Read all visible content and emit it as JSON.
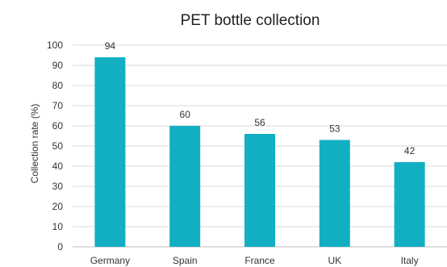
{
  "chart_data": {
    "type": "bar",
    "title": "PET bottle collection",
    "xlabel": "",
    "ylabel": "Collection rate (%)",
    "categories": [
      "Germany",
      "Spain",
      "France",
      "UK",
      "Italy"
    ],
    "values": [
      94,
      60,
      56,
      53,
      42
    ],
    "ylim": [
      0,
      100
    ],
    "yticks": [
      0,
      10,
      20,
      30,
      40,
      50,
      60,
      70,
      80,
      90,
      100
    ],
    "grid": true,
    "legend": "none",
    "bar_color": "#12AFC3"
  }
}
